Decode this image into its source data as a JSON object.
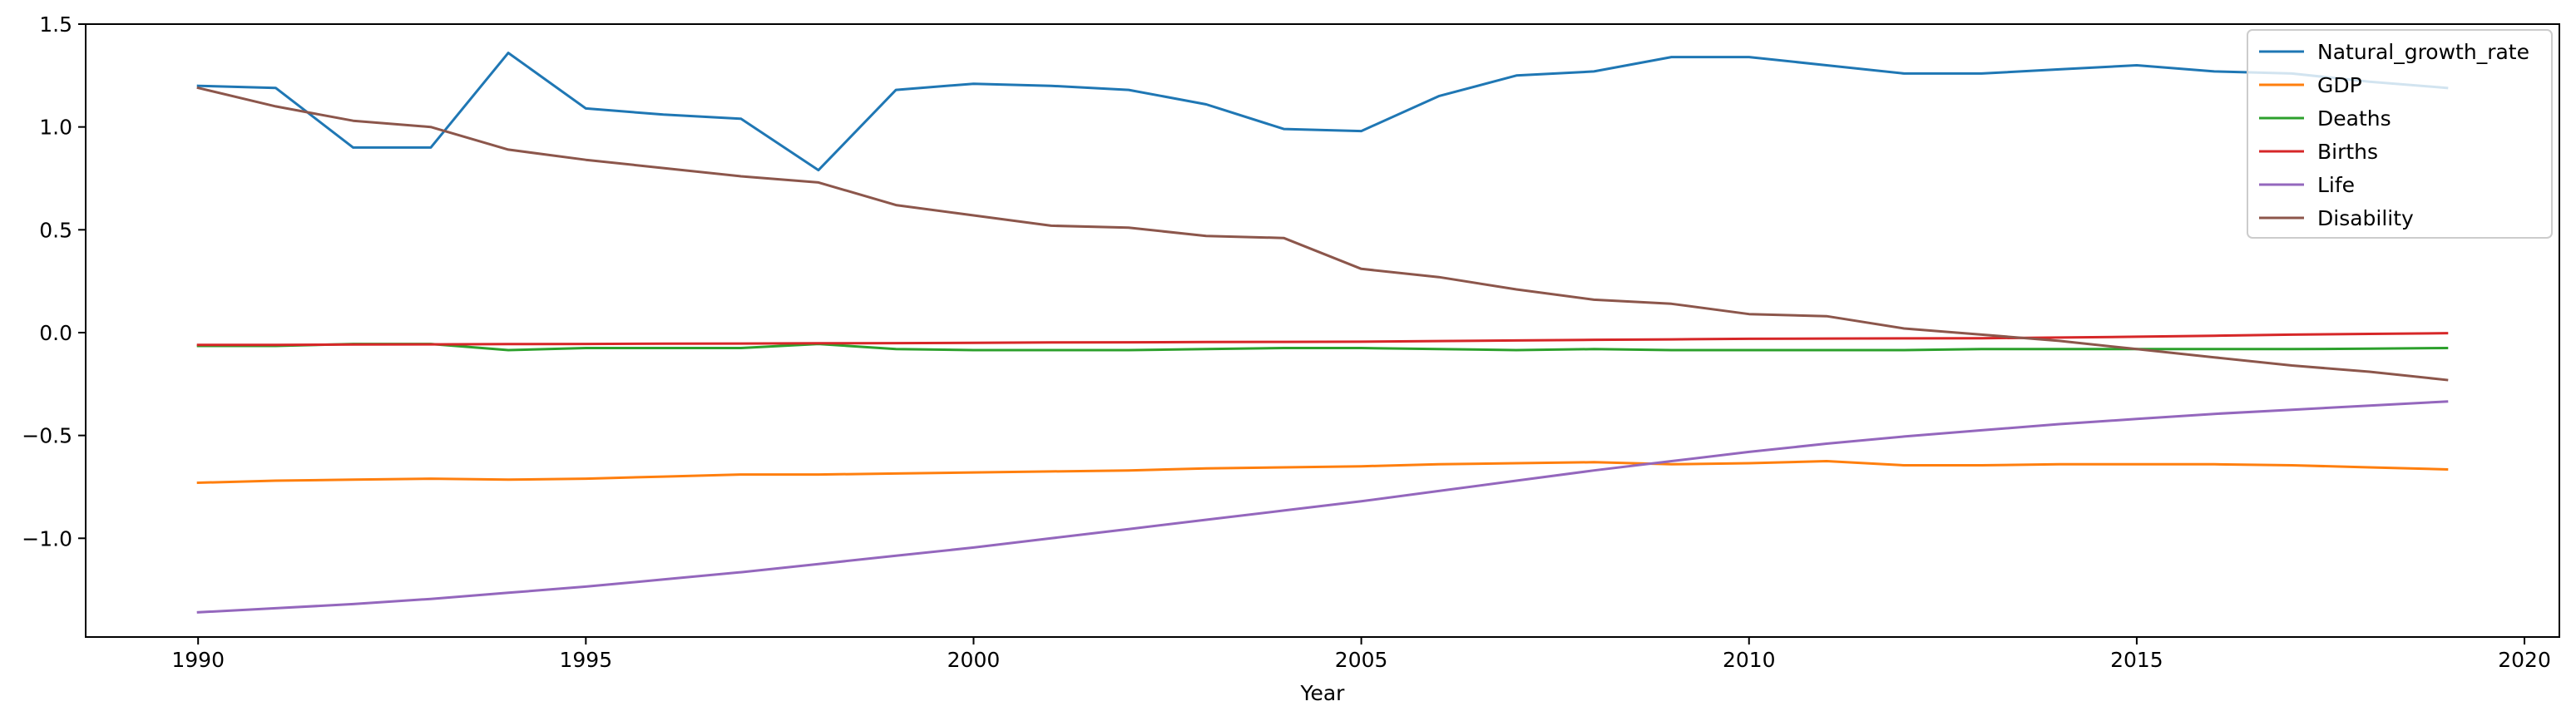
{
  "chart_data": {
    "type": "line",
    "title": "",
    "xlabel": "Year",
    "ylabel": "",
    "xlim": [
      1988.55,
      2020.45
    ],
    "ylim": [
      -1.48,
      1.5
    ],
    "xticks": [
      1990,
      1995,
      2000,
      2005,
      2010,
      2015,
      2020
    ],
    "yticks": [
      -1.0,
      -0.5,
      0.0,
      0.5,
      1.0,
      1.5
    ],
    "ytick_labels": [
      "−1.0",
      "−0.5",
      "0.0",
      "0.5",
      "1.0",
      "1.5"
    ],
    "grid": false,
    "legend_position": "top-right",
    "x": [
      1990,
      1991,
      1992,
      1993,
      1994,
      1995,
      1996,
      1997,
      1998,
      1999,
      2000,
      2001,
      2002,
      2003,
      2004,
      2005,
      2006,
      2007,
      2008,
      2009,
      2010,
      2011,
      2012,
      2013,
      2014,
      2015,
      2016,
      2017,
      2018,
      2019
    ],
    "series": [
      {
        "name": "Natural_growth_rate",
        "color": "#1f77b4",
        "values": [
          1.2,
          1.19,
          0.9,
          0.9,
          1.36,
          1.09,
          1.06,
          1.04,
          0.79,
          1.18,
          1.21,
          1.2,
          1.18,
          1.11,
          0.99,
          0.98,
          1.15,
          1.25,
          1.27,
          1.34,
          1.34,
          1.3,
          1.26,
          1.26,
          1.28,
          1.3,
          1.27,
          1.26,
          1.22,
          1.19
        ]
      },
      {
        "name": "GDP",
        "color": "#ff7f0e",
        "values": [
          -0.73,
          -0.72,
          -0.715,
          -0.71,
          -0.715,
          -0.71,
          -0.7,
          -0.69,
          -0.69,
          -0.685,
          -0.68,
          -0.675,
          -0.67,
          -0.66,
          -0.655,
          -0.65,
          -0.64,
          -0.635,
          -0.63,
          -0.64,
          -0.635,
          -0.625,
          -0.645,
          -0.645,
          -0.64,
          -0.64,
          -0.64,
          -0.645,
          -0.655,
          -0.665
        ]
      },
      {
        "name": "Deaths",
        "color": "#2ca02c",
        "values": [
          -0.065,
          -0.065,
          -0.055,
          -0.055,
          -0.085,
          -0.075,
          -0.075,
          -0.075,
          -0.055,
          -0.08,
          -0.085,
          -0.085,
          -0.085,
          -0.08,
          -0.075,
          -0.075,
          -0.08,
          -0.085,
          -0.08,
          -0.085,
          -0.085,
          -0.085,
          -0.085,
          -0.08,
          -0.08,
          -0.08,
          -0.08,
          -0.08,
          -0.078,
          -0.075
        ]
      },
      {
        "name": "Births",
        "color": "#d62728",
        "values": [
          -0.06,
          -0.06,
          -0.058,
          -0.057,
          -0.056,
          -0.055,
          -0.054,
          -0.053,
          -0.052,
          -0.051,
          -0.05,
          -0.048,
          -0.047,
          -0.046,
          -0.045,
          -0.044,
          -0.041,
          -0.038,
          -0.035,
          -0.033,
          -0.03,
          -0.029,
          -0.028,
          -0.027,
          -0.024,
          -0.02,
          -0.015,
          -0.01,
          -0.006,
          -0.003
        ]
      },
      {
        "name": "Life",
        "color": "#9467bd",
        "values": [
          -1.36,
          -1.34,
          -1.32,
          -1.295,
          -1.265,
          -1.235,
          -1.2,
          -1.165,
          -1.125,
          -1.085,
          -1.045,
          -1.0,
          -0.955,
          -0.91,
          -0.865,
          -0.82,
          -0.77,
          -0.72,
          -0.67,
          -0.625,
          -0.58,
          -0.54,
          -0.505,
          -0.475,
          -0.445,
          -0.42,
          -0.395,
          -0.375,
          -0.355,
          -0.335
        ]
      },
      {
        "name": "Disability",
        "color": "#8c564b",
        "values": [
          1.19,
          1.1,
          1.03,
          1.0,
          0.89,
          0.84,
          0.8,
          0.76,
          0.73,
          0.62,
          0.57,
          0.52,
          0.51,
          0.47,
          0.46,
          0.31,
          0.27,
          0.21,
          0.16,
          0.14,
          0.09,
          0.08,
          0.02,
          -0.01,
          -0.04,
          -0.08,
          -0.12,
          -0.16,
          -0.19,
          -0.23
        ]
      }
    ]
  }
}
